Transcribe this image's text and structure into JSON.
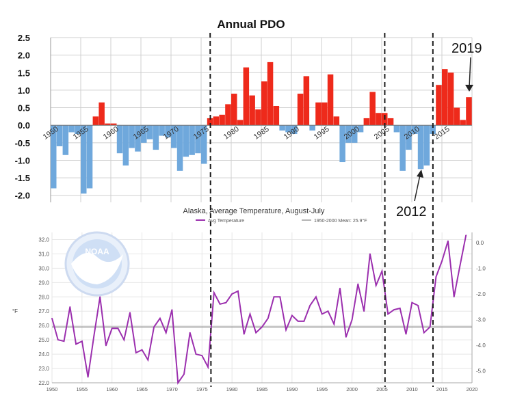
{
  "colors": {
    "pdo_positive": "#ee2a1b",
    "pdo_negative": "#6fa8dc",
    "temp_line": "#9b2fae",
    "mean_line": "#9a9a9a",
    "regime_lines": "#1a1a1a",
    "grid": "#cfcfcf"
  },
  "chart_data": [
    {
      "type": "bar",
      "title": "Annual PDO",
      "xlabel": "",
      "ylabel": "",
      "x": [
        1950,
        1951,
        1952,
        1953,
        1954,
        1955,
        1956,
        1957,
        1958,
        1959,
        1960,
        1961,
        1962,
        1963,
        1964,
        1965,
        1966,
        1967,
        1968,
        1969,
        1970,
        1971,
        1972,
        1973,
        1974,
        1975,
        1976,
        1977,
        1978,
        1979,
        1980,
        1981,
        1982,
        1983,
        1984,
        1985,
        1986,
        1987,
        1988,
        1989,
        1990,
        1991,
        1992,
        1993,
        1994,
        1995,
        1996,
        1997,
        1998,
        1999,
        2000,
        2001,
        2002,
        2003,
        2004,
        2005,
        2006,
        2007,
        2008,
        2009,
        2010,
        2011,
        2012,
        2013,
        2014,
        2015,
        2016,
        2017,
        2018,
        2019
      ],
      "values": [
        -1.8,
        -0.6,
        -0.85,
        -0.2,
        -0.25,
        -1.95,
        -1.8,
        0.25,
        0.65,
        0.05,
        0.05,
        -0.8,
        -1.15,
        -0.65,
        -0.75,
        -0.5,
        -0.4,
        -0.7,
        -0.3,
        -0.35,
        -0.65,
        -1.3,
        -0.9,
        -0.85,
        -0.8,
        -1.1,
        0.2,
        0.25,
        0.3,
        0.6,
        0.9,
        0.15,
        1.65,
        0.85,
        0.45,
        1.25,
        1.8,
        0.55,
        -0.15,
        -0.2,
        -0.25,
        0.9,
        1.4,
        -0.15,
        0.65,
        0.65,
        1.45,
        0.25,
        -1.05,
        -0.5,
        -0.5,
        -0.2,
        0.2,
        0.95,
        0.35,
        0.35,
        0.2,
        -0.2,
        -1.3,
        -0.7,
        -0.25,
        -1.25,
        -1.15,
        -0.25,
        1.15,
        1.6,
        1.5,
        0.5,
        0.15,
        0.8
      ],
      "ylim": [
        -2.2,
        2.5
      ],
      "yticks": [
        "2.5",
        "2.0",
        "1.5",
        "1.0",
        "0.5",
        "0.0",
        "-0.5",
        "-1.0",
        "-1.5",
        "-2.0"
      ],
      "ytick_values": [
        2.5,
        2.0,
        1.5,
        1.0,
        0.5,
        0.0,
        -0.5,
        -1.0,
        -1.5,
        -2.0
      ],
      "xticks": [
        "1950",
        "1955",
        "1960",
        "1965",
        "1970",
        "1975",
        "1980",
        "1985",
        "1990",
        "1995",
        "2000",
        "2005",
        "2010",
        "2015"
      ],
      "xtick_values": [
        1950,
        1955,
        1960,
        1965,
        1970,
        1975,
        1980,
        1985,
        1990,
        1995,
        2000,
        2005,
        2010,
        2015
      ],
      "grid": true
    },
    {
      "type": "line",
      "title": "Alaska, Average Temperature, August-July",
      "ylabel": "°F",
      "legend": [
        "Avg Temperature",
        "1950-2000 Mean: 25.9°F"
      ],
      "legend_position": "top-left",
      "series": [
        {
          "name": "Avg Temperature",
          "x": [
            1950,
            1951,
            1952,
            1953,
            1954,
            1955,
            1956,
            1957,
            1958,
            1959,
            1960,
            1961,
            1962,
            1963,
            1964,
            1965,
            1966,
            1967,
            1968,
            1969,
            1970,
            1971,
            1972,
            1973,
            1974,
            1975,
            1976,
            1977,
            1978,
            1979,
            1980,
            1981,
            1982,
            1983,
            1984,
            1985,
            1986,
            1987,
            1988,
            1989,
            1990,
            1991,
            1992,
            1993,
            1994,
            1995,
            1996,
            1997,
            1998,
            1999,
            2000,
            2001,
            2002,
            2003,
            2004,
            2005,
            2006,
            2007,
            2008,
            2009,
            2010,
            2011,
            2012,
            2013,
            2014,
            2015,
            2016,
            2017,
            2018,
            2019
          ],
          "values": [
            26.5,
            25.0,
            24.9,
            27.3,
            24.7,
            24.9,
            22.4,
            25.3,
            28.0,
            24.6,
            25.8,
            25.8,
            25.0,
            26.9,
            24.1,
            24.3,
            23.6,
            25.9,
            26.5,
            25.5,
            27.1,
            22.0,
            22.6,
            25.5,
            24.0,
            23.9,
            23.1,
            28.3,
            27.5,
            27.6,
            28.2,
            28.4,
            25.4,
            26.8,
            25.5,
            25.9,
            26.5,
            28.0,
            28.0,
            25.7,
            26.7,
            26.3,
            26.3,
            27.4,
            28.0,
            26.8,
            27.0,
            26.1,
            28.6,
            25.2,
            26.4,
            28.9,
            27.0,
            31.0,
            28.8,
            29.8,
            26.8,
            27.1,
            27.2,
            25.4,
            27.6,
            27.4,
            25.5,
            25.9,
            29.4,
            30.5,
            31.9,
            28.0,
            30.2,
            32.3
          ]
        }
      ],
      "mean_value": 25.9,
      "ylim": [
        22.0,
        32.5
      ],
      "xlim": [
        1950,
        2020
      ],
      "yticks_left": [
        "32.0",
        "31.0",
        "30.0",
        "29.0",
        "28.0",
        "27.0",
        "26.0",
        "25.0",
        "24.0",
        "23.0",
        "22.0"
      ],
      "ytick_values_left": [
        32,
        31,
        30,
        29,
        28,
        27,
        26,
        25,
        24,
        23,
        22
      ],
      "yticks_right": [
        "0.0",
        "-1.0",
        "-2.0",
        "-3.0",
        "-4.0",
        "-5.0"
      ],
      "ytick_values_right": [
        0,
        -1,
        -2,
        -3,
        -4,
        -5
      ],
      "xticks": [
        "1950",
        "1955",
        "1960",
        "1965",
        "1970",
        "1975",
        "1980",
        "1985",
        "1990",
        "1995",
        "2000",
        "2005",
        "2010",
        "2015",
        "2020"
      ],
      "xtick_values": [
        1950,
        1955,
        1960,
        1965,
        1970,
        1975,
        1980,
        1985,
        1990,
        1995,
        2000,
        2005,
        2010,
        2015,
        2020
      ],
      "grid": true
    }
  ],
  "regime_shift_years": [
    1976.5,
    2005.5,
    2013.5
  ],
  "annotations": [
    {
      "label": "2019",
      "points_to_year": 2019
    },
    {
      "label": "2012",
      "points_to_year": 2012
    }
  ],
  "logo_text": "NOAA"
}
